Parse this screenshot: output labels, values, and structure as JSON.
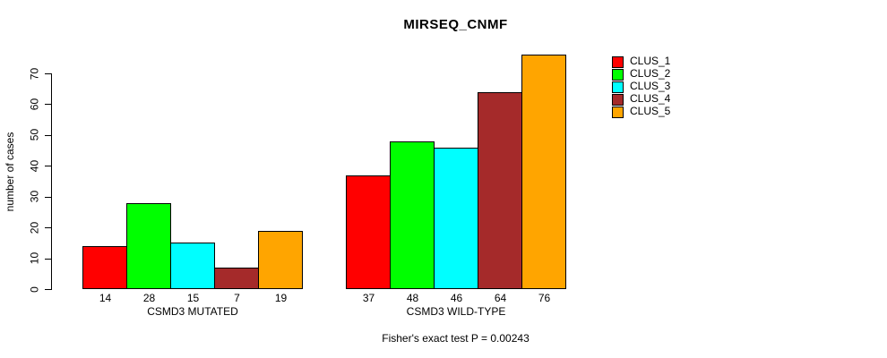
{
  "chart_data": {
    "type": "bar",
    "title": "MIRSEQ_CNMF",
    "ylabel": "number of cases",
    "xlabel": "",
    "annotation": "Fisher's exact test P = 0.00243",
    "categories": [
      "CLUS_1",
      "CLUS_2",
      "CLUS_3",
      "CLUS_4",
      "CLUS_5"
    ],
    "groups": [
      {
        "label": "CSMD3 MUTATED",
        "values": [
          14,
          28,
          15,
          7,
          19
        ]
      },
      {
        "label": "CSMD3 WILD-TYPE",
        "values": [
          37,
          48,
          46,
          64,
          76
        ]
      }
    ],
    "legend": [
      {
        "label": "CLUS_1",
        "color": "#FF0000"
      },
      {
        "label": "CLUS_2",
        "color": "#00FF00"
      },
      {
        "label": "CLUS_3",
        "color": "#00FFFF"
      },
      {
        "label": "CLUS_4",
        "color": "#A52A2A"
      },
      {
        "label": "CLUS_5",
        "color": "#FFA500"
      }
    ],
    "yticks": [
      0,
      10,
      20,
      30,
      40,
      50,
      60,
      70
    ],
    "ylim": [
      0,
      70
    ],
    "grid": false,
    "legend_position": "right-inside",
    "bar_value_labels_shown": true,
    "background_color": "#FFFFFF",
    "axis_color": "#000000"
  }
}
